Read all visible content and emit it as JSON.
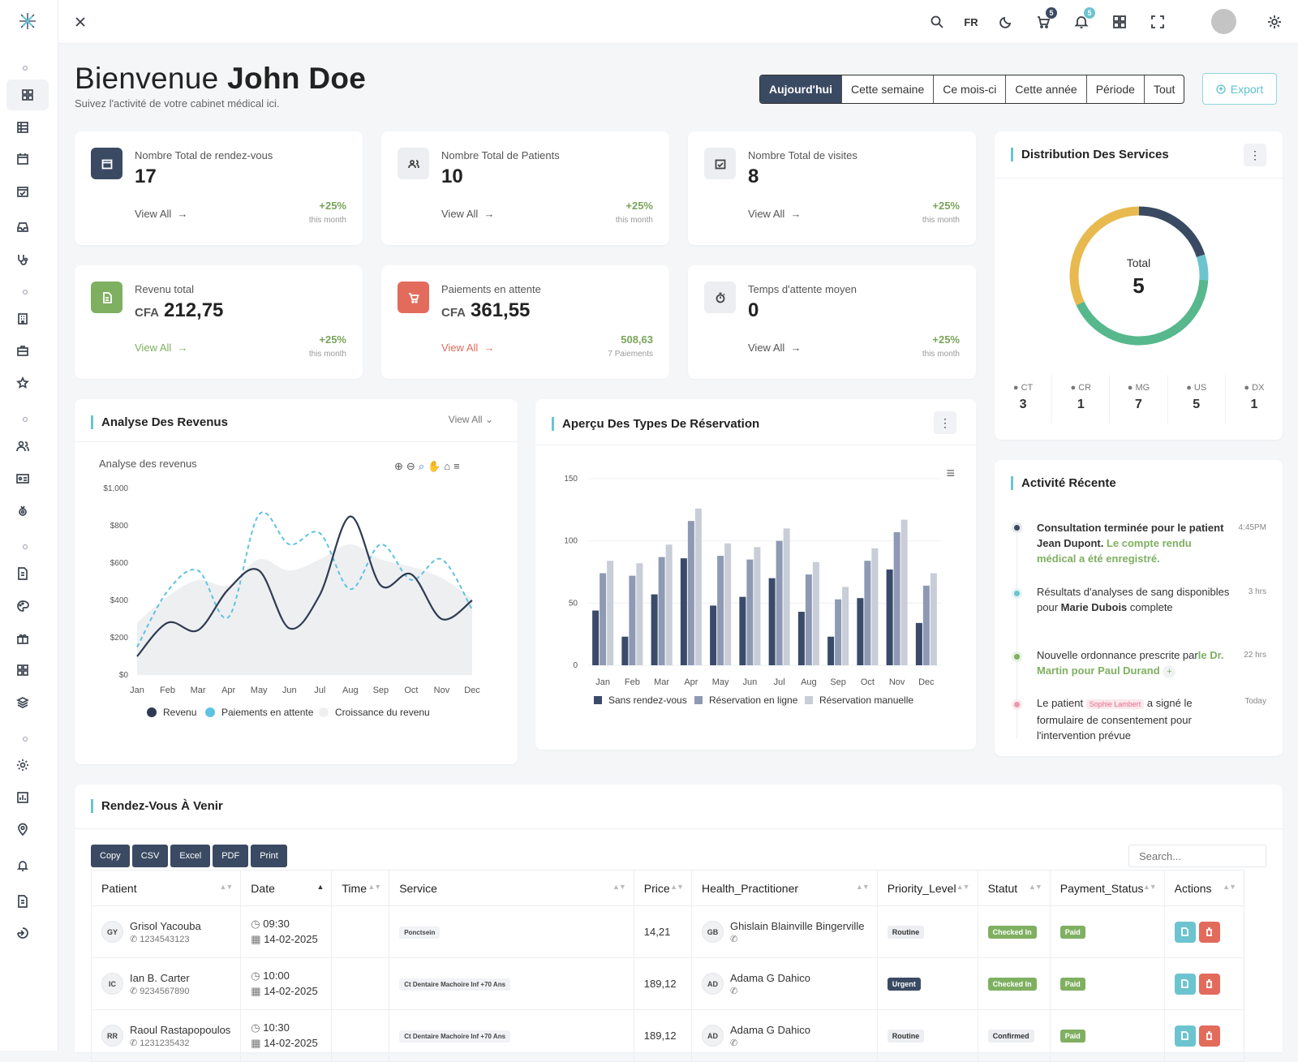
{
  "topbar": {
    "lang": "FR",
    "cart_badge": "5",
    "bell_badge": "5"
  },
  "welcome": {
    "greeting": "Bienvenue",
    "name": "John Doe",
    "subtitle": "Suivez l'activité de votre cabinet médical ici."
  },
  "periods": [
    "Aujourd'hui",
    "Cette semaine",
    "Ce mois-ci",
    "Cette année",
    "Période",
    "Tout"
  ],
  "export_label": "Export",
  "stats": [
    {
      "label": "Nombre Total de rendez-vous",
      "value": "17",
      "currency": "",
      "view": "View All",
      "delta": "+25%",
      "sub": "this month",
      "color": "#3a4a62"
    },
    {
      "label": "Nombre Total de Patients",
      "value": "10",
      "currency": "",
      "view": "View All",
      "delta": "+25%",
      "sub": "this month",
      "color": "#e9ebee"
    },
    {
      "label": "Nombre Total de visites",
      "value": "8",
      "currency": "",
      "view": "View All",
      "delta": "+25%",
      "sub": "this month",
      "color": "#e9ebee"
    },
    {
      "label": "Revenu total",
      "value": "212,75",
      "currency": "CFA",
      "view": "View All",
      "delta": "+25%",
      "sub": "this month",
      "color": "#7fb061"
    },
    {
      "label": "Paiements en attente",
      "value": "361,55",
      "currency": "CFA",
      "view": "View All",
      "delta": "508,63",
      "sub": "7 Paiements",
      "color": "#e36b5c"
    },
    {
      "label": "Temps d'attente moyen",
      "value": "0",
      "currency": "",
      "view": "View All",
      "delta": "+25%",
      "sub": "this month",
      "color": "#e9ebee"
    }
  ],
  "distribution": {
    "title": "Distribution Des Services",
    "total_label": "Total",
    "total_value": "5",
    "items": [
      {
        "code": "CT",
        "value": "3"
      },
      {
        "code": "CR",
        "value": "1"
      },
      {
        "code": "MG",
        "value": "7"
      },
      {
        "code": "US",
        "value": "5"
      },
      {
        "code": "DX",
        "value": "1"
      }
    ]
  },
  "revenue_chart": {
    "section_title": "Analyse Des Revenus",
    "view_all": "View All"
  },
  "reservation_chart": {
    "section_title": "Aperçu Des Types De Réservation"
  },
  "chart_data": [
    {
      "type": "line",
      "title": "Analyse des revenus",
      "categories": [
        "Jan",
        "Feb",
        "Mar",
        "Apr",
        "May",
        "Jun",
        "Jul",
        "Aug",
        "Sep",
        "Oct",
        "Nov",
        "Dec"
      ],
      "y_ticks": [
        "$0",
        "$200",
        "$400",
        "$600",
        "$800",
        "$1,000"
      ],
      "ylim": [
        0,
        1000
      ],
      "series": [
        {
          "name": "Revenu",
          "color": "#2f3b52",
          "values": [
            100,
            280,
            240,
            460,
            560,
            250,
            430,
            850,
            480,
            540,
            300,
            400
          ]
        },
        {
          "name": "Paiements en attente",
          "color": "#5ec2e0",
          "values": [
            150,
            450,
            560,
            310,
            860,
            700,
            760,
            460,
            700,
            510,
            620,
            350
          ]
        },
        {
          "name": "Croissance du revenu",
          "color": "#eeeff1",
          "values": [
            280,
            420,
            510,
            480,
            620,
            560,
            620,
            700,
            620,
            580,
            520,
            410
          ]
        }
      ]
    },
    {
      "type": "bar",
      "categories": [
        "Jan",
        "Feb",
        "Mar",
        "Apr",
        "May",
        "Jun",
        "Jul",
        "Aug",
        "Sep",
        "Oct",
        "Nov",
        "Dec"
      ],
      "y_ticks": [
        "0",
        "50",
        "100",
        "150"
      ],
      "ylim": [
        0,
        150
      ],
      "series": [
        {
          "name": "Sans rendez-vous",
          "color": "#3a4a6a",
          "values": [
            44,
            23,
            57,
            86,
            48,
            55,
            70,
            43,
            23,
            54,
            77,
            34
          ]
        },
        {
          "name": "Réservation en ligne",
          "color": "#8e9ab3",
          "values": [
            74,
            72,
            87,
            116,
            88,
            85,
            100,
            73,
            53,
            84,
            107,
            64
          ]
        },
        {
          "name": "Réservation manuelle",
          "color": "#c8cdd8",
          "values": [
            84,
            82,
            97,
            126,
            98,
            95,
            110,
            83,
            63,
            94,
            117,
            74
          ]
        }
      ]
    },
    {
      "type": "pie",
      "title": "Distribution Des Services",
      "categories": [
        "CT",
        "CR",
        "MG",
        "US",
        "DX"
      ],
      "values": [
        3,
        1,
        7,
        5,
        1
      ]
    }
  ],
  "activity": {
    "title": "Activité Récente",
    "items": [
      {
        "p1": "Consultation terminée pour le patient Jean Dupont.",
        "p2": "Le compte rendu médical a été enregistré.",
        "time": "4:45PM",
        "dot": "#3a4a62"
      },
      {
        "p1": "Résultats d'analyses de sang disponibles pour",
        "p2": "Marie Dubois",
        "p3": "complete",
        "time": "3 hrs",
        "dot": "#6cc4cf"
      },
      {
        "p1": "Nouvelle ordonnance prescrite par",
        "p2": "le Dr. Martin pour Paul Durand",
        "time": "22 hrs",
        "dot": "#7fb061"
      },
      {
        "p1": "Le patient",
        "tag": "Sophie Lambert",
        "p2": "a signé le formulaire de consentement pour l'intervention prévue",
        "time": "Today",
        "dot": "#e89aae"
      }
    ]
  },
  "appointments": {
    "title": "Rendez-Vous À Venir",
    "buttons": [
      "Copy",
      "CSV",
      "Excel",
      "PDF",
      "Print"
    ],
    "search_placeholder": "Search...",
    "columns": [
      "Patient",
      "Date",
      "Time",
      "Service",
      "Price",
      "Health_Practitioner",
      "Priority_Level",
      "Statut",
      "Payment_Status",
      "Actions"
    ],
    "rows": [
      {
        "initials": "GY",
        "name": "Grisol Yacouba",
        "phone": "1234543123",
        "time": "09:30",
        "date": "14-02-2025",
        "service": "Ponctsein",
        "price": "14,21",
        "pr_initials": "GB",
        "practitioner": "Ghislain Blainville Bingerville",
        "priority": "Routine",
        "statut": "Checked In",
        "payment": "Paid"
      },
      {
        "initials": "IC",
        "name": "Ian B. Carter",
        "phone": "9234567890",
        "time": "10:00",
        "date": "14-02-2025",
        "service": "Ct Dentaire Machoire Inf +70 Ans",
        "price": "189,12",
        "pr_initials": "AD",
        "practitioner": "Adama G Dahico",
        "priority": "Urgent",
        "statut": "Checked In",
        "payment": "Paid"
      },
      {
        "initials": "RR",
        "name": "Raoul Rastapopoulos",
        "phone": "1231235432",
        "time": "10:30",
        "date": "14-02-2025",
        "service": "Ct Dentaire Machoire Inf +70 Ans",
        "price": "189,12",
        "pr_initials": "AD",
        "practitioner": "Adama G Dahico",
        "priority": "Routine",
        "statut": "Confirmed",
        "payment": "Paid"
      }
    ]
  }
}
